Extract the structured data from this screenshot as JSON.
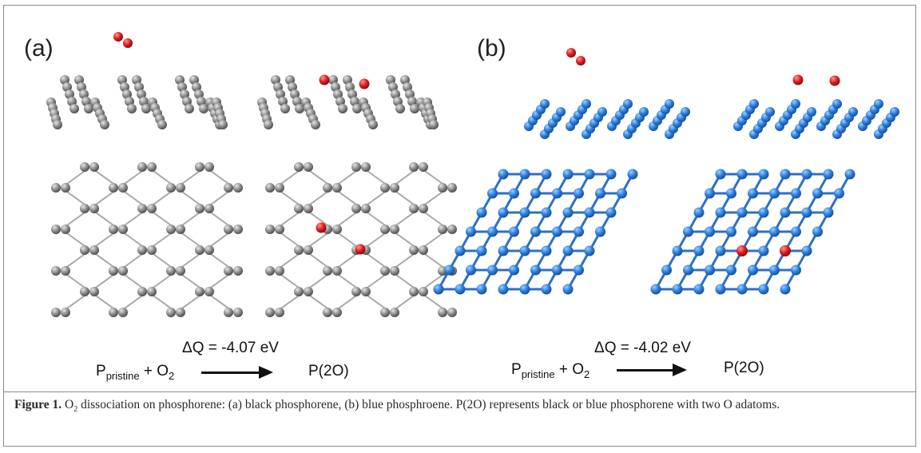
{
  "panels": [
    {
      "label": "(a)",
      "delta_q": "ΔQ = -4.07 eV",
      "reactant_p": "P",
      "reactant_sub": "pristine",
      "reactant_plus": " + O",
      "reactant_o_sub": "2",
      "product": "P(2O)",
      "atom_color": "#8c8c8c",
      "bond_color": "#a8a8a8"
    },
    {
      "label": "(b)",
      "delta_q": "ΔQ = -4.02 eV",
      "reactant_p": "P",
      "reactant_sub": "pristine",
      "reactant_plus": " + O",
      "reactant_o_sub": "2",
      "product": "P(2O)",
      "atom_color": "#2f7fd6",
      "bond_color": "#2f6fc4"
    }
  ],
  "oxygen_color": "#e02020",
  "caption": {
    "figure_label": "Figure 1.",
    "o": " O",
    "o_sub": "2",
    "text": " dissociation on phosphorene: (a) black phosphorene, (b) blue phosphroene. P(2O) represents black or blue phosphorene with two O adatoms."
  }
}
